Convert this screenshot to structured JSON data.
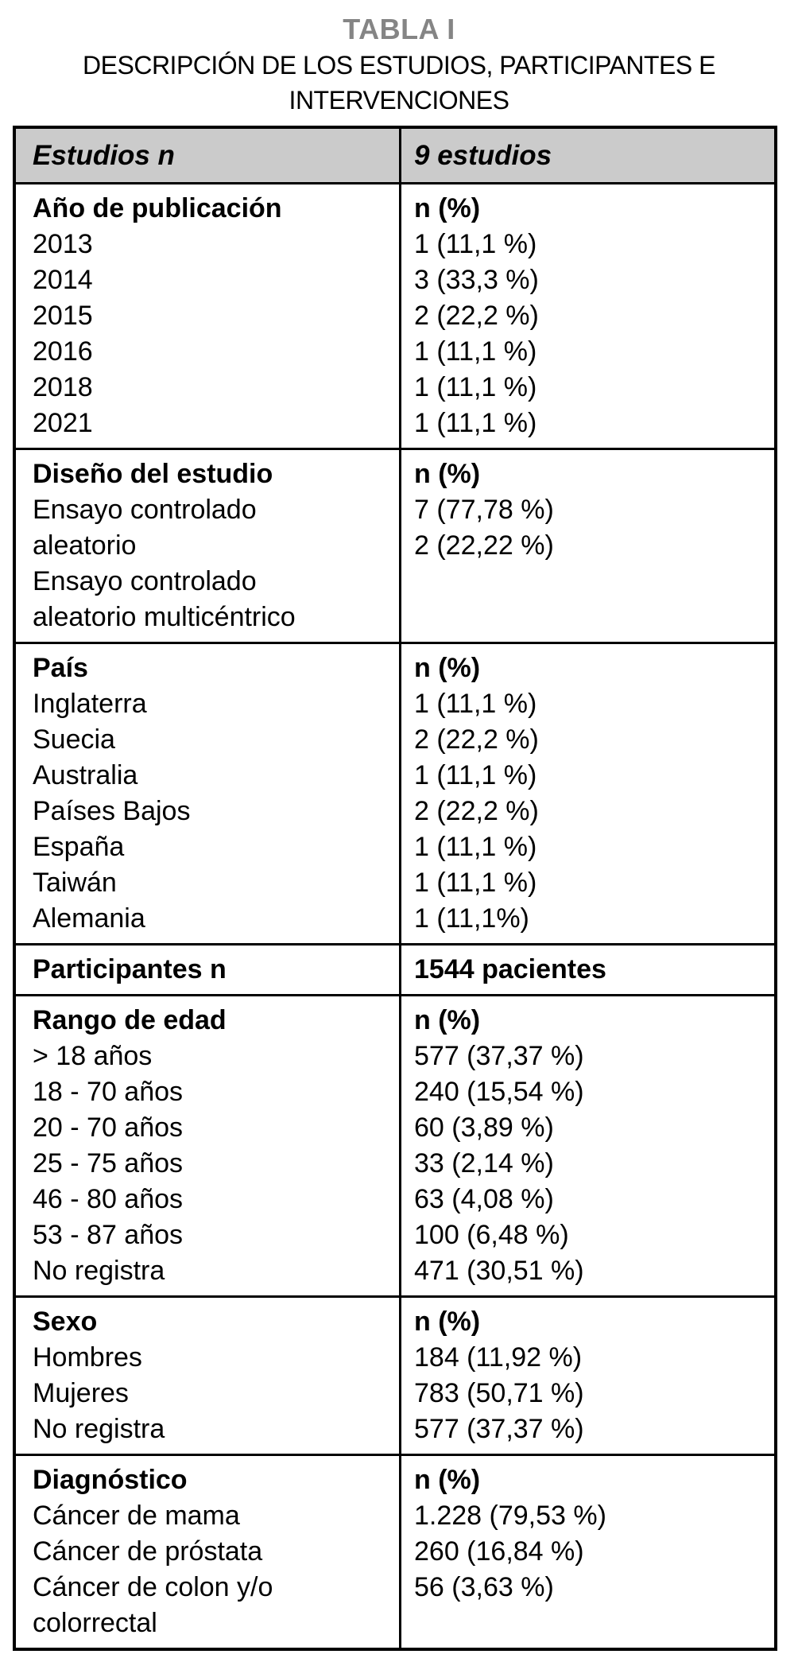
{
  "figure": {
    "label": "TABLA I",
    "title_lines": [
      "DESCRIPCIÓN DE LOS ESTUDIOS, PARTICIPANTES E",
      "INTERVENCIONES"
    ]
  },
  "colors": {
    "header_bg": "#cbcbcb",
    "label_gray": "#858585",
    "border": "#000000",
    "text": "#000000",
    "background": "#ffffff"
  },
  "table": {
    "header": {
      "left": "Estudios n",
      "right": "9 estudios"
    },
    "sections": [
      {
        "id": "ano-de-publicacion",
        "left": [
          {
            "text": "Año de publicación",
            "bold": true
          },
          {
            "text": "2013"
          },
          {
            "text": "2014"
          },
          {
            "text": "2015"
          },
          {
            "text": "2016"
          },
          {
            "text": "2018"
          },
          {
            "text": "2021"
          }
        ],
        "right": [
          {
            "text": "n (%)",
            "bold": true
          },
          {
            "text": "1 (11,1 %)"
          },
          {
            "text": "3 (33,3 %)"
          },
          {
            "text": "2 (22,2 %)"
          },
          {
            "text": "1 (11,1 %)"
          },
          {
            "text": "1 (11,1 %)"
          },
          {
            "text": "1 (11,1 %)"
          }
        ]
      },
      {
        "id": "diseno-del-estudio",
        "left": [
          {
            "text": "Diseño del estudio",
            "bold": true
          },
          {
            "text": "Ensayo controlado"
          },
          {
            "text": "aleatorio"
          },
          {
            "text": "Ensayo controlado"
          },
          {
            "text": "aleatorio multicéntrico"
          }
        ],
        "right": [
          {
            "text": "n (%)",
            "bold": true
          },
          {
            "text": "7 (77,78 %)"
          },
          {
            "text": "2 (22,22 %)"
          }
        ]
      },
      {
        "id": "pais",
        "left": [
          {
            "text": "País",
            "bold": true
          },
          {
            "text": "Inglaterra"
          },
          {
            "text": "Suecia"
          },
          {
            "text": "Australia"
          },
          {
            "text": "Países Bajos"
          },
          {
            "text": "España"
          },
          {
            "text": "Taiwán"
          },
          {
            "text": "Alemania"
          }
        ],
        "right": [
          {
            "text": "n (%)",
            "bold": true
          },
          {
            "text": "1 (11,1 %)"
          },
          {
            "text": "2 (22,2 %)"
          },
          {
            "text": "1 (11,1 %)"
          },
          {
            "text": "2 (22,2 %)"
          },
          {
            "text": "1 (11,1 %)"
          },
          {
            "text": "1 (11,1 %)"
          },
          {
            "text": "1 (11,1%)"
          }
        ]
      },
      {
        "id": "participantes",
        "left": [
          {
            "text": "Participantes n",
            "bold": true
          }
        ],
        "right": [
          {
            "text": "1544 pacientes",
            "bold": true
          }
        ]
      },
      {
        "id": "rango-de-edad",
        "left": [
          {
            "text": "Rango de edad",
            "bold": true
          },
          {
            "text": "> 18 años"
          },
          {
            "text": "18 - 70 años"
          },
          {
            "text": "20 - 70 años"
          },
          {
            "text": "25 - 75 años"
          },
          {
            "text": "46 - 80 años"
          },
          {
            "text": "53 - 87 años"
          },
          {
            "text": "No registra"
          }
        ],
        "right": [
          {
            "text": "n (%)",
            "bold": true
          },
          {
            "text": "577 (37,37 %)"
          },
          {
            "text": "240 (15,54 %)"
          },
          {
            "text": "60 (3,89 %)"
          },
          {
            "text": "33 (2,14 %)"
          },
          {
            "text": "63 (4,08 %)"
          },
          {
            "text": "100 (6,48 %)"
          },
          {
            "text": "471 (30,51 %)"
          }
        ]
      },
      {
        "id": "sexo",
        "left": [
          {
            "text": "Sexo",
            "bold": true
          },
          {
            "text": "Hombres"
          },
          {
            "text": "Mujeres"
          },
          {
            "text": "No registra"
          }
        ],
        "right": [
          {
            "text": "n (%)",
            "bold": true
          },
          {
            "text": "184 (11,92 %)"
          },
          {
            "text": "783 (50,71 %)"
          },
          {
            "text": "577 (37,37 %)"
          }
        ]
      },
      {
        "id": "diagnostico",
        "left": [
          {
            "text": "Diagnóstico",
            "bold": true
          },
          {
            "text": "Cáncer de mama"
          },
          {
            "text": "Cáncer de próstata"
          },
          {
            "text": "Cáncer de colon y/o"
          },
          {
            "text": "colorrectal"
          }
        ],
        "right": [
          {
            "text": "n (%)",
            "bold": true
          },
          {
            "text": "1.228 (79,53 %)"
          },
          {
            "text": "260 (16,84 %)"
          },
          {
            "text": "56 (3,63 %)"
          }
        ]
      }
    ]
  }
}
